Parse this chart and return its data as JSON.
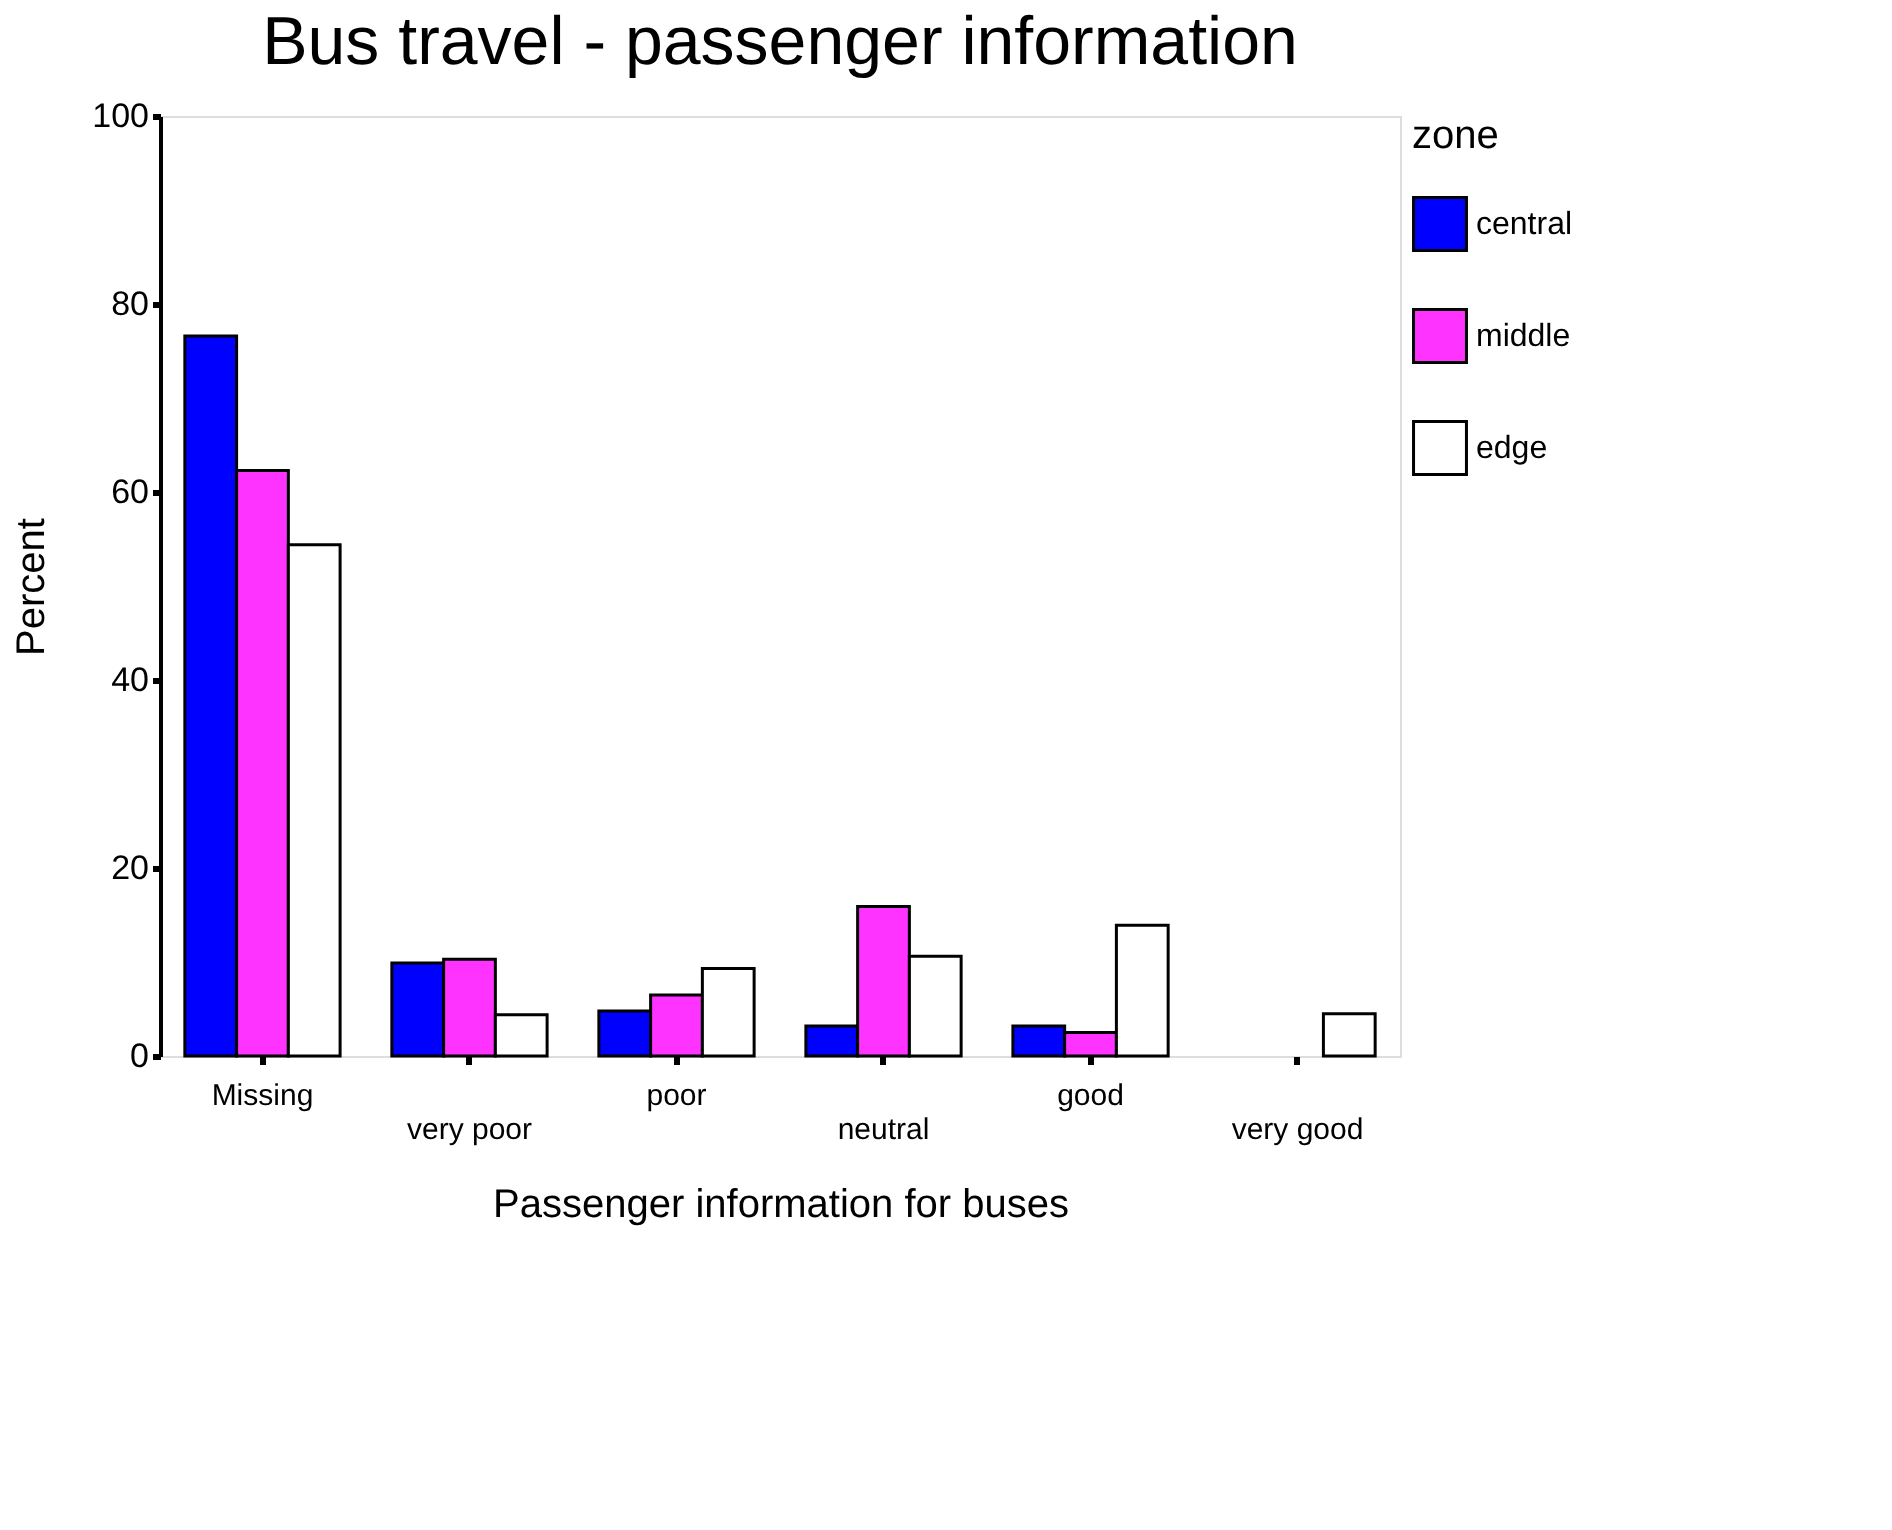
{
  "chart_data": {
    "type": "bar",
    "title": "Bus travel - passenger information",
    "xlabel": "Passenger information for buses",
    "ylabel": "Percent",
    "legend_title": "zone",
    "categories": [
      "Missing",
      "very poor",
      "poor",
      "neutral",
      "good",
      "very good"
    ],
    "series": [
      {
        "name": "central",
        "color": "#0000ff",
        "values": [
          76.6,
          9.9,
          4.8,
          3.2,
          3.2,
          null
        ]
      },
      {
        "name": "middle",
        "color": "#ff33ff",
        "values": [
          62.3,
          10.3,
          6.5,
          15.9,
          2.5,
          null
        ]
      },
      {
        "name": "edge",
        "color": "#ffffff",
        "values": [
          54.4,
          4.4,
          9.3,
          10.6,
          13.9,
          4.5
        ]
      }
    ],
    "ylim": [
      0,
      100
    ],
    "yticks": [
      0,
      20,
      40,
      60,
      80,
      100
    ],
    "grid": false,
    "legend": "right"
  }
}
